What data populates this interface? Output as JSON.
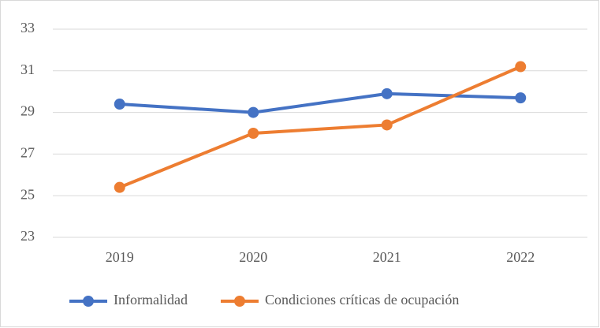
{
  "chart_data": {
    "type": "line",
    "categories": [
      "2019",
      "2020",
      "2021",
      "2022"
    ],
    "series": [
      {
        "name": "Informalidad",
        "color": "#4472c4",
        "values": [
          29.4,
          29.0,
          29.9,
          29.7
        ]
      },
      {
        "name": "Condiciones críticas de ocupación",
        "color": "#ed7d31",
        "values": [
          25.4,
          28.0,
          28.4,
          31.2
        ]
      }
    ],
    "ylim": [
      23,
      33
    ],
    "yticks": [
      23,
      25,
      27,
      29,
      31,
      33
    ],
    "grid": true,
    "legend": "bottom"
  }
}
